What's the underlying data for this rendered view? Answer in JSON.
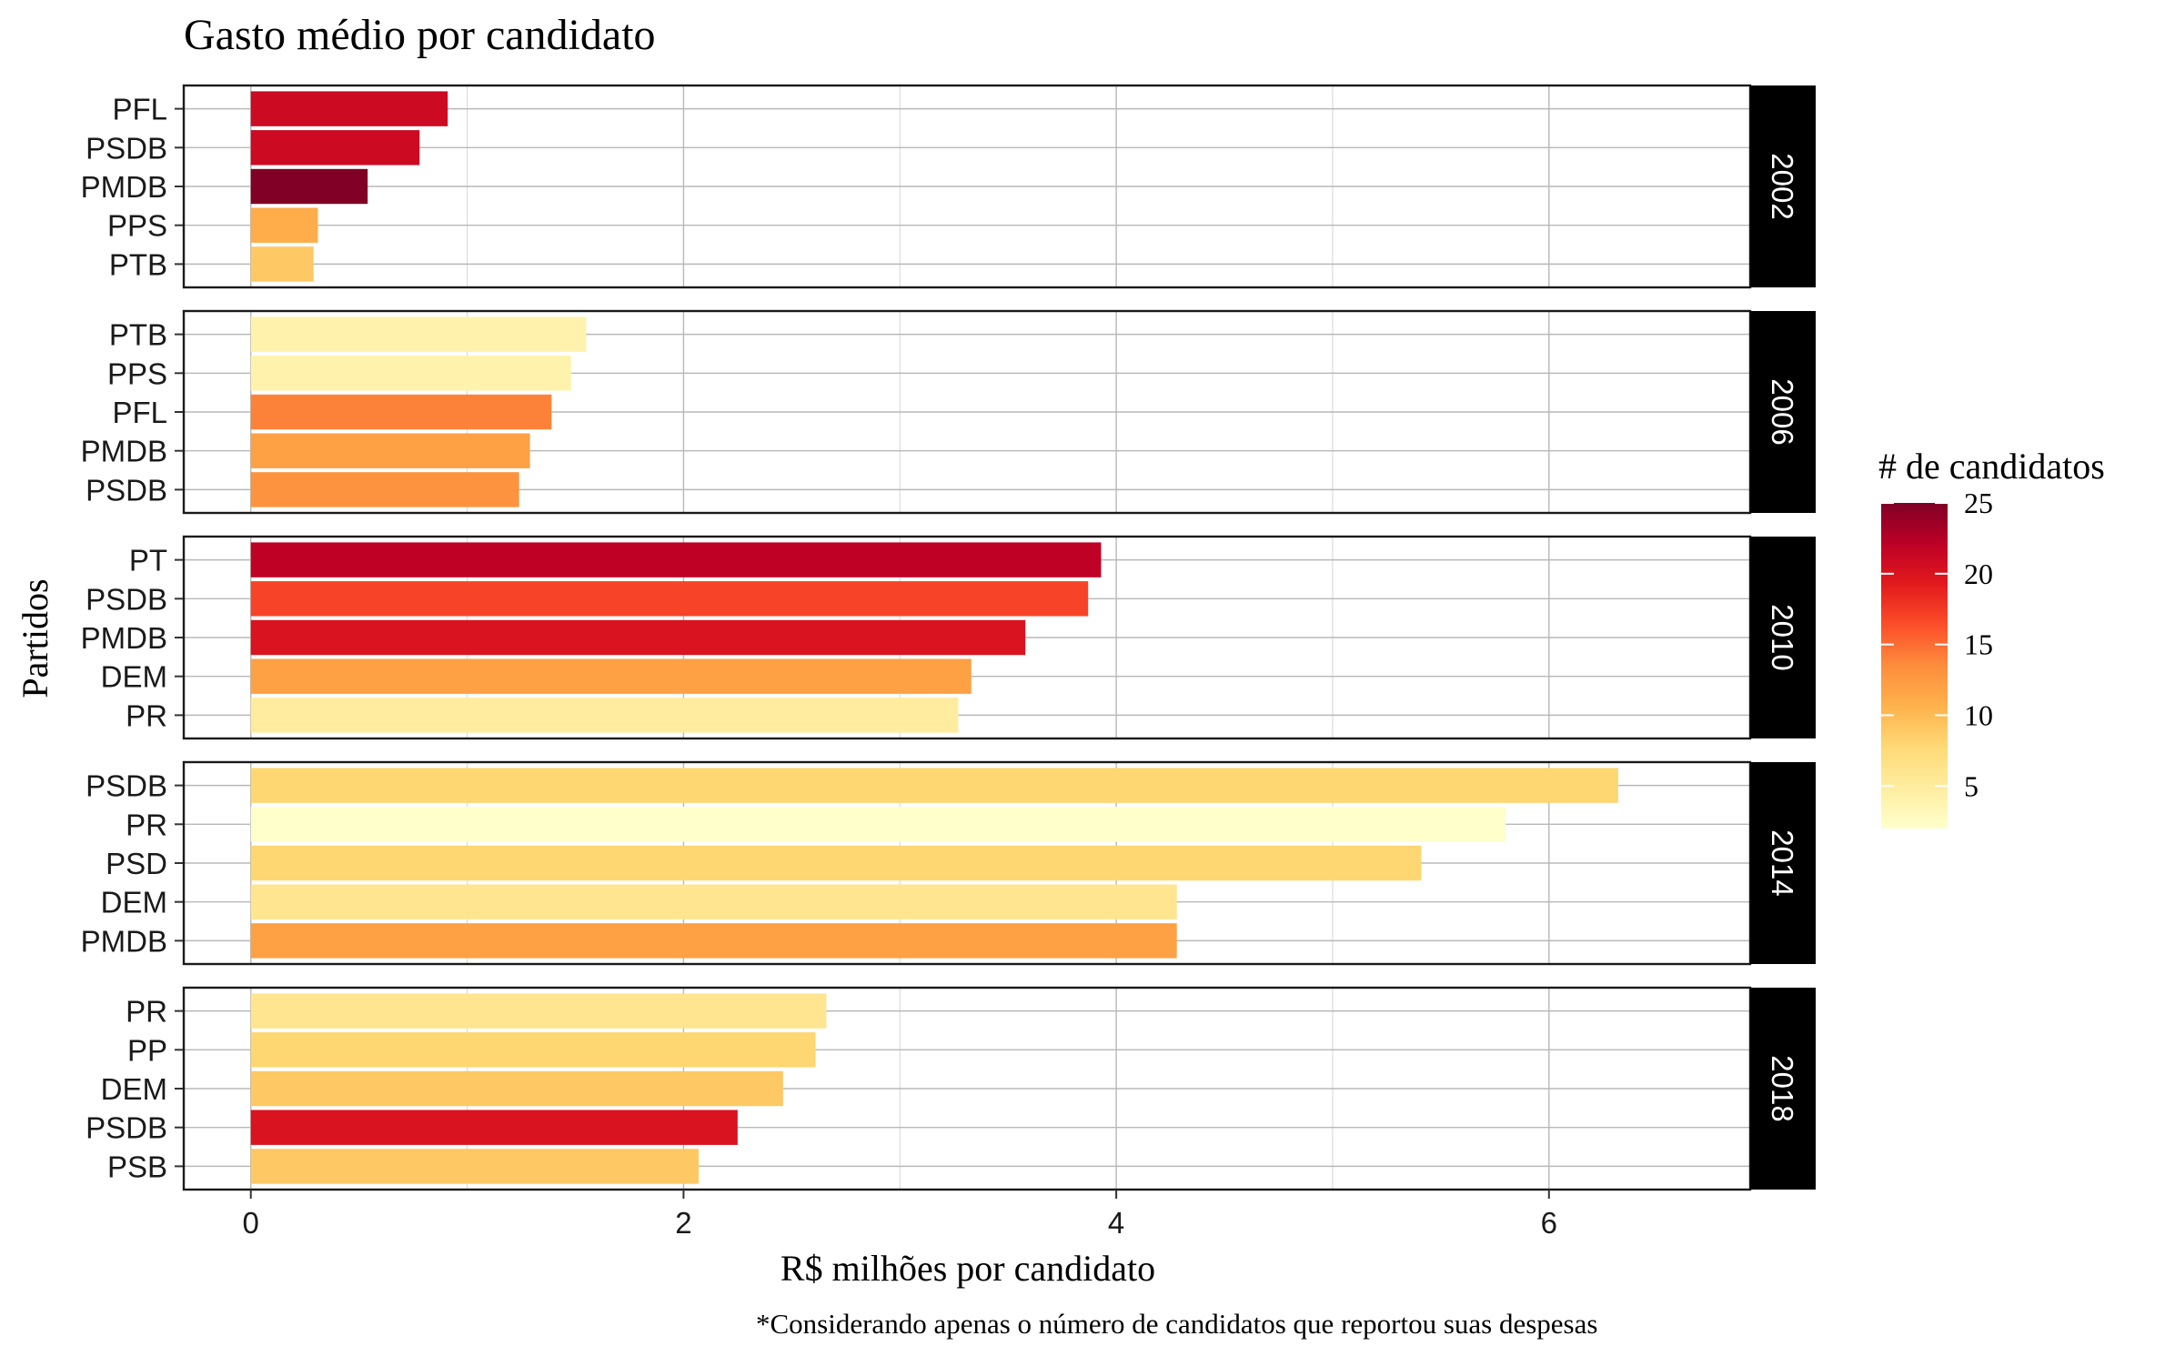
{
  "chart_data": {
    "type": "bar",
    "orientation": "horizontal",
    "title": "Gasto médio por candidato",
    "xlabel": "R$ milhões por candidato",
    "ylabel": "Partidos",
    "caption": "*Considerando apenas o número de candidatos que reportou suas despesas",
    "xlim": [
      -0.31,
      6.93
    ],
    "xticks": [
      "0",
      "2",
      "4",
      "6"
    ],
    "grid": true,
    "legend": {
      "title": "# de candidatos",
      "placement": "right",
      "ticks": [
        "5",
        "10",
        "15",
        "20",
        "25"
      ],
      "range": [
        2,
        25
      ]
    },
    "colorscale": [
      "#ffffcc",
      "#ffeda0",
      "#fed976",
      "#feb24c",
      "#fd8d3c",
      "#fc4e2a",
      "#e31a1c",
      "#bd0026",
      "#800026"
    ],
    "facets": [
      {
        "label": "2002",
        "bars": [
          {
            "party": "PFL",
            "value": 0.91,
            "candidates": 21
          },
          {
            "party": "PSDB",
            "value": 0.78,
            "candidates": 21
          },
          {
            "party": "PMDB",
            "value": 0.54,
            "candidates": 25
          },
          {
            "party": "PPS",
            "value": 0.31,
            "candidates": 11
          },
          {
            "party": "PTB",
            "value": 0.29,
            "candidates": 9
          }
        ]
      },
      {
        "label": "2006",
        "bars": [
          {
            "party": "PTB",
            "value": 1.55,
            "candidates": 4
          },
          {
            "party": "PPS",
            "value": 1.48,
            "candidates": 4
          },
          {
            "party": "PFL",
            "value": 1.39,
            "candidates": 14
          },
          {
            "party": "PMDB",
            "value": 1.29,
            "candidates": 12
          },
          {
            "party": "PSDB",
            "value": 1.24,
            "candidates": 13
          }
        ]
      },
      {
        "label": "2010",
        "bars": [
          {
            "party": "PT",
            "value": 3.93,
            "candidates": 22
          },
          {
            "party": "PSDB",
            "value": 3.87,
            "candidates": 17
          },
          {
            "party": "PMDB",
            "value": 3.58,
            "candidates": 20
          },
          {
            "party": "DEM",
            "value": 3.33,
            "candidates": 12
          },
          {
            "party": "PR",
            "value": 3.27,
            "candidates": 5
          }
        ]
      },
      {
        "label": "2014",
        "bars": [
          {
            "party": "PSDB",
            "value": 6.32,
            "candidates": 8
          },
          {
            "party": "PR",
            "value": 5.8,
            "candidates": 2
          },
          {
            "party": "PSD",
            "value": 5.41,
            "candidates": 8
          },
          {
            "party": "DEM",
            "value": 4.28,
            "candidates": 6
          },
          {
            "party": "PMDB",
            "value": 4.28,
            "candidates": 12
          }
        ]
      },
      {
        "label": "2018",
        "bars": [
          {
            "party": "PR",
            "value": 2.66,
            "candidates": 6
          },
          {
            "party": "PP",
            "value": 2.61,
            "candidates": 8
          },
          {
            "party": "DEM",
            "value": 2.46,
            "candidates": 9
          },
          {
            "party": "PSDB",
            "value": 2.25,
            "candidates": 20
          },
          {
            "party": "PSB",
            "value": 2.07,
            "candidates": 9
          }
        ]
      }
    ]
  }
}
